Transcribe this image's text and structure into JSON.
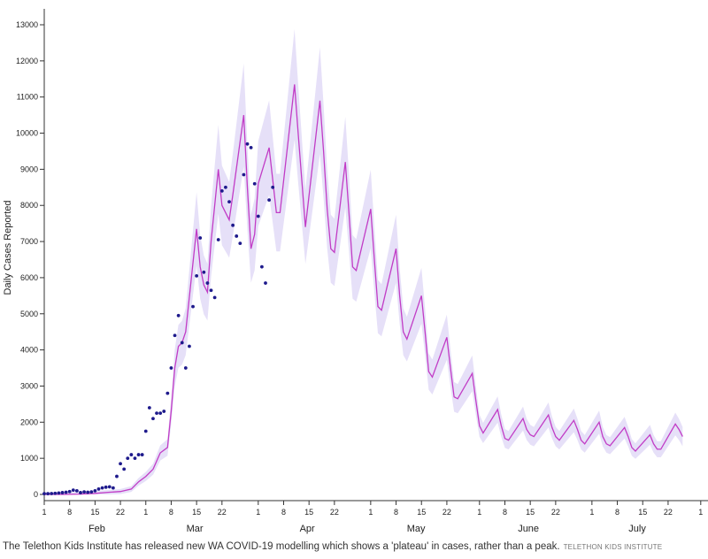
{
  "caption": {
    "text": "The Telethon Kids Institute has released new WA COVID-19 modelling which shows a 'plateau' in cases, rather than a peak.",
    "credit": "TELETHON KIDS INSTITUTE"
  },
  "chart_data": {
    "type": "line",
    "ylabel": "Daily Cases Reported",
    "xlabel": "",
    "ylim": [
      0,
      13000
    ],
    "yticks": [
      0,
      1000,
      2000,
      3000,
      4000,
      5000,
      6000,
      7000,
      8000,
      9000,
      10000,
      11000,
      12000,
      13000
    ],
    "xlim_day": [
      0,
      183
    ],
    "x_day_ticks": [
      {
        "day": 0,
        "label": "1"
      },
      {
        "day": 7,
        "label": "8"
      },
      {
        "day": 14,
        "label": "15"
      },
      {
        "day": 21,
        "label": "22"
      },
      {
        "day": 28,
        "label": "1"
      },
      {
        "day": 35,
        "label": "8"
      },
      {
        "day": 42,
        "label": "15"
      },
      {
        "day": 49,
        "label": "22"
      },
      {
        "day": 59,
        "label": "1"
      },
      {
        "day": 66,
        "label": "8"
      },
      {
        "day": 73,
        "label": "15"
      },
      {
        "day": 80,
        "label": "22"
      },
      {
        "day": 90,
        "label": "1"
      },
      {
        "day": 97,
        "label": "8"
      },
      {
        "day": 104,
        "label": "15"
      },
      {
        "day": 111,
        "label": "22"
      },
      {
        "day": 120,
        "label": "1"
      },
      {
        "day": 127,
        "label": "8"
      },
      {
        "day": 134,
        "label": "15"
      },
      {
        "day": 141,
        "label": "22"
      },
      {
        "day": 151,
        "label": "1"
      },
      {
        "day": 158,
        "label": "8"
      },
      {
        "day": 165,
        "label": "15"
      },
      {
        "day": 172,
        "label": "22"
      },
      {
        "day": 181,
        "label": "1"
      }
    ],
    "x_months": [
      {
        "day": 14.5,
        "label": "Feb"
      },
      {
        "day": 41.5,
        "label": "Mar"
      },
      {
        "day": 72.5,
        "label": "Apr"
      },
      {
        "day": 102.5,
        "label": "May"
      },
      {
        "day": 133.5,
        "label": "June"
      },
      {
        "day": 163.5,
        "label": "July"
      }
    ],
    "model": {
      "color": "#c13cc6",
      "band_color": "#e6e0f8",
      "points": [
        [
          0,
          0
        ],
        [
          5,
          0
        ],
        [
          10,
          10
        ],
        [
          14,
          30
        ],
        [
          18,
          60
        ],
        [
          21,
          80
        ],
        [
          24,
          150
        ],
        [
          26,
          350
        ],
        [
          28,
          500
        ],
        [
          30,
          700
        ],
        [
          32,
          1150
        ],
        [
          34,
          1300
        ],
        [
          35,
          2300
        ],
        [
          36,
          3500
        ],
        [
          37,
          4100
        ],
        [
          38,
          4200
        ],
        [
          39,
          4500
        ],
        [
          42,
          7350
        ],
        [
          43,
          6300
        ],
        [
          44,
          5800
        ],
        [
          45,
          5600
        ],
        [
          46,
          7000
        ],
        [
          48,
          9000
        ],
        [
          49,
          8000
        ],
        [
          50,
          7800
        ],
        [
          51,
          7600
        ],
        [
          52,
          8300
        ],
        [
          55,
          10500
        ],
        [
          56,
          8500
        ],
        [
          57,
          6800
        ],
        [
          58,
          7200
        ],
        [
          59,
          8600
        ],
        [
          62,
          9600
        ],
        [
          63,
          8700
        ],
        [
          64,
          7800
        ],
        [
          65,
          7800
        ],
        [
          69,
          11350
        ],
        [
          70,
          10000
        ],
        [
          71,
          8700
        ],
        [
          72,
          7400
        ],
        [
          76,
          10900
        ],
        [
          77,
          9500
        ],
        [
          78,
          7900
        ],
        [
          79,
          6800
        ],
        [
          80,
          6700
        ],
        [
          83,
          9200
        ],
        [
          84,
          7800
        ],
        [
          85,
          6300
        ],
        [
          86,
          6200
        ],
        [
          90,
          7900
        ],
        [
          91,
          6500
        ],
        [
          92,
          5200
        ],
        [
          93,
          5100
        ],
        [
          97,
          6800
        ],
        [
          98,
          5500
        ],
        [
          99,
          4500
        ],
        [
          100,
          4300
        ],
        [
          104,
          5500
        ],
        [
          105,
          4500
        ],
        [
          106,
          3400
        ],
        [
          107,
          3250
        ],
        [
          111,
          4350
        ],
        [
          112,
          3500
        ],
        [
          113,
          2700
        ],
        [
          114,
          2650
        ],
        [
          118,
          3350
        ],
        [
          119,
          2600
        ],
        [
          120,
          1900
        ],
        [
          121,
          1700
        ],
        [
          125,
          2350
        ],
        [
          126,
          1900
        ],
        [
          127,
          1550
        ],
        [
          128,
          1500
        ],
        [
          132,
          2100
        ],
        [
          133,
          1800
        ],
        [
          134,
          1650
        ],
        [
          135,
          1600
        ],
        [
          139,
          2200
        ],
        [
          140,
          1850
        ],
        [
          141,
          1600
        ],
        [
          142,
          1500
        ],
        [
          146,
          2050
        ],
        [
          147,
          1800
        ],
        [
          148,
          1500
        ],
        [
          149,
          1400
        ],
        [
          153,
          2000
        ],
        [
          154,
          1600
        ],
        [
          155,
          1400
        ],
        [
          156,
          1350
        ],
        [
          160,
          1850
        ],
        [
          161,
          1600
        ],
        [
          162,
          1300
        ],
        [
          163,
          1200
        ],
        [
          167,
          1650
        ],
        [
          168,
          1400
        ],
        [
          169,
          1250
        ],
        [
          170,
          1250
        ],
        [
          174,
          1950
        ],
        [
          175,
          1800
        ],
        [
          176,
          1600
        ]
      ]
    },
    "observed": {
      "color": "#1e1a8c",
      "points": [
        [
          0,
          20
        ],
        [
          1,
          20
        ],
        [
          2,
          25
        ],
        [
          3,
          30
        ],
        [
          4,
          40
        ],
        [
          5,
          50
        ],
        [
          6,
          60
        ],
        [
          7,
          80
        ],
        [
          8,
          120
        ],
        [
          9,
          100
        ],
        [
          10,
          50
        ],
        [
          11,
          70
        ],
        [
          12,
          60
        ],
        [
          13,
          70
        ],
        [
          14,
          100
        ],
        [
          15,
          150
        ],
        [
          16,
          180
        ],
        [
          17,
          200
        ],
        [
          18,
          210
        ],
        [
          19,
          180
        ],
        [
          20,
          500
        ],
        [
          21,
          850
        ],
        [
          22,
          700
        ],
        [
          23,
          1000
        ],
        [
          24,
          1100
        ],
        [
          25,
          1000
        ],
        [
          26,
          1100
        ],
        [
          27,
          1100
        ],
        [
          28,
          1750
        ],
        [
          29,
          2400
        ],
        [
          30,
          2100
        ],
        [
          31,
          2250
        ],
        [
          32,
          2250
        ],
        [
          33,
          2300
        ],
        [
          34,
          2800
        ],
        [
          35,
          3500
        ],
        [
          36,
          4400
        ],
        [
          37,
          4950
        ],
        [
          38,
          4200
        ],
        [
          39,
          3500
        ],
        [
          40,
          4100
        ],
        [
          41,
          5200
        ],
        [
          42,
          6050
        ],
        [
          43,
          7100
        ],
        [
          44,
          6150
        ],
        [
          45,
          5850
        ],
        [
          46,
          5650
        ],
        [
          47,
          5450
        ],
        [
          48,
          7050
        ],
        [
          49,
          8400
        ],
        [
          50,
          8500
        ],
        [
          51,
          8100
        ],
        [
          52,
          7450
        ],
        [
          53,
          7150
        ],
        [
          54,
          6950
        ],
        [
          55,
          8850
        ],
        [
          56,
          9700
        ],
        [
          57,
          9600
        ],
        [
          58,
          8600
        ],
        [
          59,
          7700
        ],
        [
          60,
          6300
        ],
        [
          61,
          5850
        ],
        [
          62,
          8150
        ],
        [
          63,
          8500
        ]
      ]
    }
  }
}
